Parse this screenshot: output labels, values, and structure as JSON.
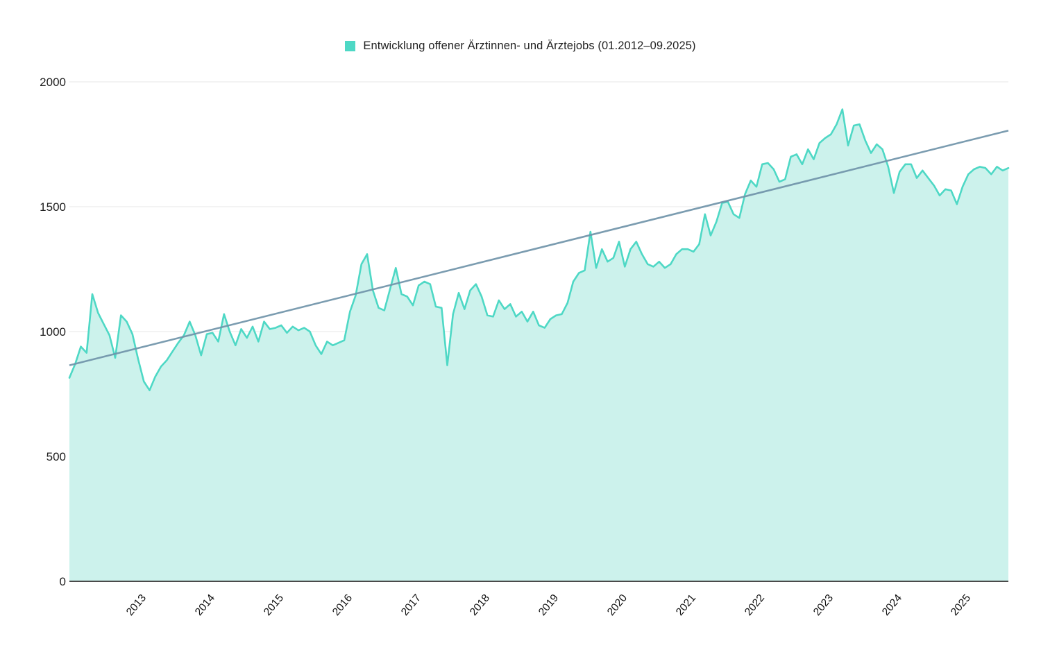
{
  "legend": {
    "label": "Entwicklung offener Ärztinnen- und Ärztejobs (01.2012–09.2025)"
  },
  "colors": {
    "series_line": "#4ed8c5",
    "series_fill": "#ccf2ec",
    "trend_line": "#7094aa",
    "gridline": "#e7e7e7",
    "axis_line": "#4a4a4a",
    "text": "#1f1f1f"
  },
  "chart_data": {
    "type": "area",
    "title": "Entwicklung offener Ärztinnen- und Ärztejobs (01.2012–09.2025)",
    "x_start": "2012-01",
    "x_end": "2025-09",
    "x_frequency": "monthly",
    "xlabel": "",
    "ylabel": "",
    "ylim": [
      0,
      2000
    ],
    "y_ticks": [
      0,
      500,
      1000,
      1500,
      2000
    ],
    "x_tick_labels": [
      "2013",
      "2014",
      "2015",
      "2016",
      "2017",
      "2018",
      "2019",
      "2020",
      "2021",
      "2022",
      "2023",
      "2024",
      "2025"
    ],
    "x_tick_month_indices": [
      12,
      24,
      36,
      48,
      60,
      72,
      84,
      96,
      108,
      120,
      132,
      144,
      156
    ],
    "grid": true,
    "legend_position": "top",
    "series": [
      {
        "name": "Entwicklung offener Ärztinnen- und Ärztejobs (01.2012–09.2025)",
        "render": "area",
        "values": [
          815,
          870,
          940,
          915,
          1150,
          1075,
          1030,
          985,
          895,
          1065,
          1040,
          990,
          890,
          800,
          765,
          820,
          860,
          885,
          920,
          955,
          985,
          1040,
          985,
          905,
          990,
          995,
          960,
          1070,
          1000,
          945,
          1010,
          975,
          1020,
          960,
          1040,
          1010,
          1015,
          1025,
          995,
          1020,
          1005,
          1015,
          1000,
          945,
          910,
          960,
          945,
          955,
          965,
          1080,
          1145,
          1270,
          1310,
          1165,
          1095,
          1085,
          1170,
          1255,
          1150,
          1140,
          1105,
          1185,
          1200,
          1190,
          1100,
          1095,
          865,
          1070,
          1155,
          1090,
          1165,
          1190,
          1140,
          1065,
          1060,
          1125,
          1090,
          1110,
          1060,
          1080,
          1040,
          1080,
          1025,
          1015,
          1050,
          1065,
          1070,
          1115,
          1200,
          1235,
          1245,
          1400,
          1255,
          1330,
          1280,
          1295,
          1360,
          1260,
          1330,
          1360,
          1310,
          1270,
          1260,
          1280,
          1255,
          1270,
          1310,
          1330,
          1330,
          1320,
          1350,
          1470,
          1385,
          1440,
          1515,
          1520,
          1470,
          1455,
          1550,
          1605,
          1580,
          1670,
          1675,
          1650,
          1600,
          1610,
          1700,
          1710,
          1670,
          1730,
          1690,
          1755,
          1775,
          1790,
          1830,
          1890,
          1745,
          1825,
          1830,
          1765,
          1715,
          1750,
          1730,
          1660,
          1555,
          1640,
          1670,
          1670,
          1615,
          1645,
          1615,
          1585,
          1545,
          1570,
          1565,
          1510,
          1580,
          1630,
          1650,
          1660,
          1655,
          1630,
          1660,
          1645,
          1655
        ]
      },
      {
        "name": "Trend",
        "render": "straight-line",
        "endpoint_values": [
          865,
          1805
        ]
      }
    ]
  }
}
